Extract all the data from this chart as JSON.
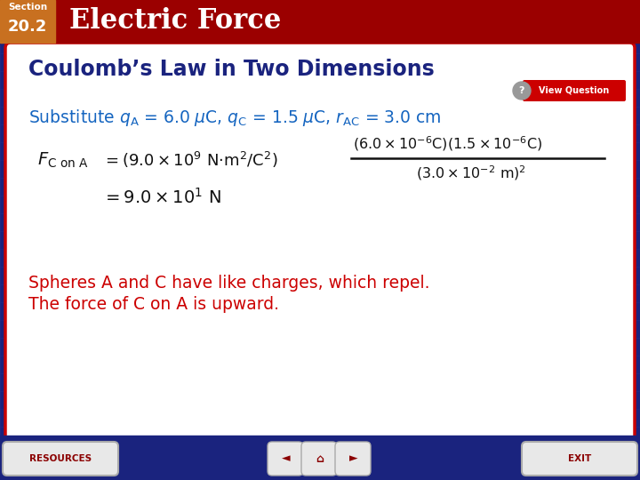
{
  "header_bg": "#9b0000",
  "header_section_label": "Section",
  "header_section_num": "20.2",
  "header_title": "Electric Force",
  "slide_bg": "#1a237e",
  "content_bg": "white",
  "content_border_color": "#cc0000",
  "title_text": "Coulomb’s Law in Two Dimensions",
  "title_color": "#1a237e",
  "substitute_text_color": "#1565c0",
  "formula_color": "#111111",
  "conclusion_color": "#cc0000",
  "viewq_bg": "#cc0000",
  "viewq_text": "View Question",
  "conclusion_line1": "Spheres A and C have like charges, which repel.",
  "conclusion_line2": "The force of C on A is upward.",
  "footer_bg": "#1a237e",
  "resources_text": "RESOURCES",
  "exit_text": "EXIT",
  "footer_btn_bg": "#e8e8e8",
  "section_box_bg": "#c87020",
  "grid_color": "#2a3590"
}
